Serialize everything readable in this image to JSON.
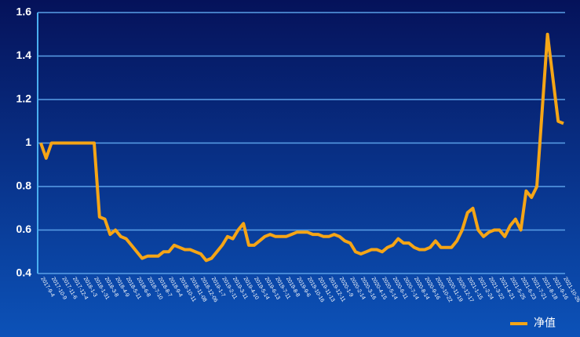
{
  "chart_data": {
    "type": "line",
    "categories": [
      "2017-9-4",
      null,
      "2017-10-9",
      null,
      "2017-11-6",
      null,
      "2017-12-4",
      null,
      "2018-1-3",
      null,
      "2018-1-31",
      null,
      "2018-3-8",
      null,
      "2018-4-9",
      null,
      "2018-5-11",
      null,
      "2018-6-8",
      null,
      "2018-7-10",
      null,
      "2018-8-7",
      null,
      "2018-9-4",
      null,
      "2018-10-11",
      null,
      "2018-11-08",
      null,
      "2018-12-06",
      null,
      "2019-1-7",
      null,
      "2019-2-11",
      null,
      "2019-3-11",
      null,
      "2019-4-10",
      null,
      "2019-5-14",
      null,
      "2019-6-13",
      null,
      "2019-7-11",
      null,
      "2019-8-8",
      null,
      "2019-9-6",
      null,
      "2019-10-16",
      null,
      "2019-11-13",
      null,
      "2019-12-11",
      null,
      "2020-1-9",
      null,
      "2020-2-14",
      null,
      "2020-3-16",
      null,
      "2020-4-15",
      null,
      "2020-5-14",
      null,
      "2020-6-11",
      null,
      "2020-7-14",
      null,
      "2020-8-14",
      null,
      "2020-9-16",
      null,
      "2020-10-22",
      null,
      "2020-11-19",
      null,
      "2020-12-17",
      null,
      "2021-1-15",
      null,
      "2021-2-24",
      null,
      "2021-3-22",
      null,
      "2021-4-21",
      null,
      "2021-5-25",
      null,
      "2021-6-23",
      null,
      "2021-7-21",
      null,
      "2021-8-18",
      null,
      "2021-9-16",
      null,
      "2021-10-26"
    ],
    "series": [
      {
        "name": "净值",
        "color": "#f5a516",
        "values": [
          1.0,
          0.93,
          1.0,
          1.0,
          1.0,
          1.0,
          1.0,
          1.0,
          1.0,
          1.0,
          1.0,
          0.66,
          0.65,
          0.58,
          0.6,
          0.57,
          0.56,
          0.53,
          0.5,
          0.47,
          0.48,
          0.48,
          0.48,
          0.5,
          0.5,
          0.53,
          0.52,
          0.51,
          0.51,
          0.5,
          0.49,
          0.46,
          0.47,
          0.5,
          0.53,
          0.57,
          0.56,
          0.6,
          0.63,
          0.53,
          0.53,
          0.55,
          0.57,
          0.58,
          0.57,
          0.57,
          0.57,
          0.58,
          0.59,
          0.59,
          0.59,
          0.58,
          0.58,
          0.57,
          0.57,
          0.58,
          0.57,
          0.55,
          0.54,
          0.5,
          0.49,
          0.5,
          0.51,
          0.51,
          0.5,
          0.52,
          0.53,
          0.56,
          0.54,
          0.54,
          0.52,
          0.51,
          0.51,
          0.52,
          0.55,
          0.52,
          0.52,
          0.52,
          0.55,
          0.6,
          0.68,
          0.7,
          0.6,
          0.57,
          0.59,
          0.6,
          0.6,
          0.57,
          0.62,
          0.65,
          0.6,
          0.78,
          0.75,
          0.8,
          1.15,
          1.5,
          1.3,
          1.1,
          1.09
        ]
      }
    ],
    "ylim": [
      0.4,
      1.6
    ],
    "yticks": [
      0.4,
      0.6,
      0.8,
      1,
      1.2,
      1.4,
      1.6
    ],
    "grid": true,
    "legend": "bottom-right"
  }
}
